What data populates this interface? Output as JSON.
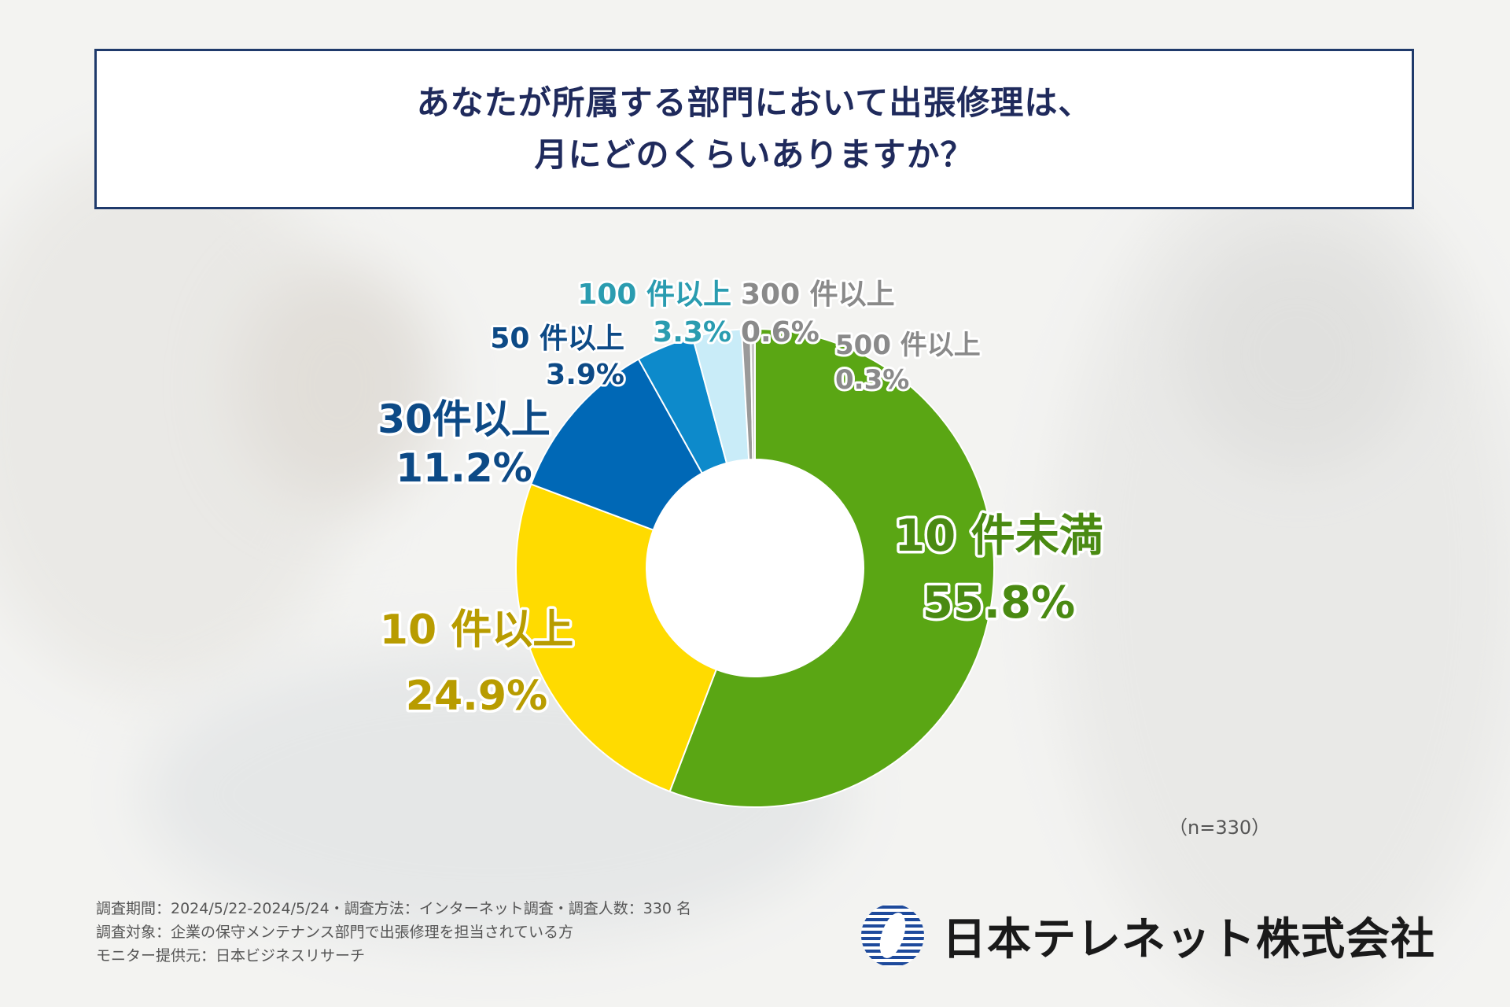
{
  "title": {
    "line1": "あなたが所属する部門において出張修理は、",
    "line2": "月にどのくらいありますか？"
  },
  "chart_data": {
    "type": "pie",
    "variant": "donut",
    "series": [
      {
        "name": "10 件未満",
        "value": 55.8,
        "label": "55.8%",
        "color": "#5aa614",
        "text_color": "#4a8a12"
      },
      {
        "name": "10 件以上",
        "value": 24.9,
        "label": "24.9%",
        "color": "#ffdb00",
        "text_color": "#b89c00"
      },
      {
        "name": "30件以上",
        "value": 11.2,
        "label": "11.2%",
        "color": "#0068b6",
        "text_color": "#0d4a86"
      },
      {
        "name": "50 件以上",
        "value": 3.9,
        "label": "3.9%",
        "color": "#0d8acb",
        "text_color": "#0d4a86"
      },
      {
        "name": "100 件以上",
        "value": 3.3,
        "label": "3.3%",
        "color": "#c9ecf8",
        "text_color": "#2a9cb0"
      },
      {
        "name": "300 件以上",
        "value": 0.6,
        "label": "0.6%",
        "color": "#9a9a9a",
        "text_color": "#8a8a8a"
      },
      {
        "name": "500 件以上",
        "value": 0.3,
        "label": "0.3%",
        "color": "#c8c8c8",
        "text_color": "#8a8a8a"
      }
    ],
    "sample_note": "（n=330）"
  },
  "footer": {
    "line1": "調査期間：2024/5/22-2024/5/24・調査方法：インターネット調査・調査人数：330 名",
    "line2": "調査対象：企業の保守メンテナンス部門で出張修理を担当されている方",
    "line3": "モニター提供元：日本ビジネスリサーチ"
  },
  "logo": {
    "company": "日本テレネット株式会社",
    "icon": "telenet-logo-icon"
  }
}
